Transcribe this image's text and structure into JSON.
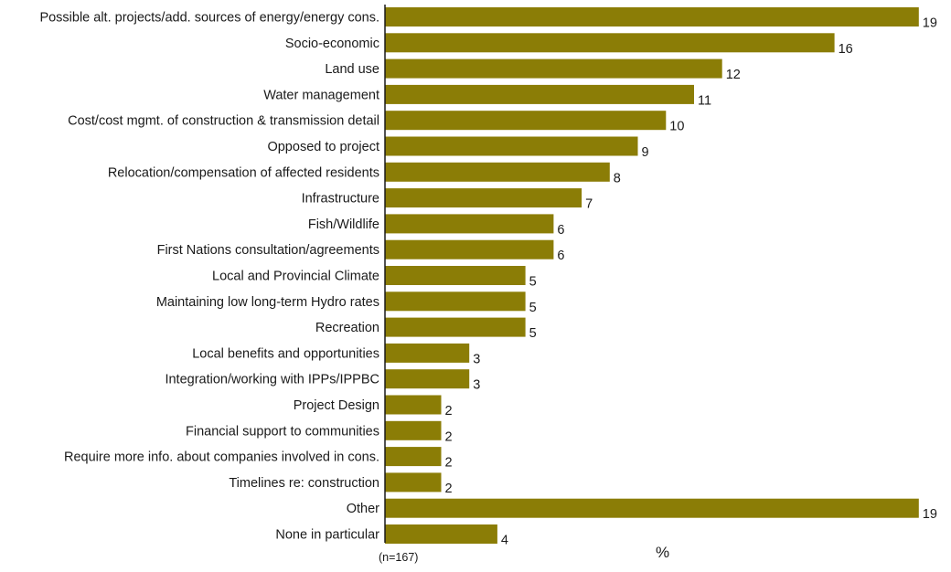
{
  "chart_data": {
    "type": "bar",
    "orientation": "horizontal",
    "categories": [
      "Possible alt. projects/add. sources of energy/energy cons.",
      "Socio-economic",
      "Land use",
      "Water management",
      "Cost/cost mgmt. of construction & transmission detail",
      "Opposed to project",
      "Relocation/compensation of affected residents",
      "Infrastructure",
      "Fish/Wildlife",
      "First Nations consultation/agreements",
      "Local and Provincial Climate",
      "Maintaining low long-term Hydro rates",
      "Recreation",
      "Local benefits and opportunities",
      "Integration/working with IPPs/IPPBC",
      "Project Design",
      "Financial support to communities",
      "Require more info. about companies involved in cons.",
      "Timelines re: construction",
      "Other",
      "None in particular"
    ],
    "values": [
      19,
      16,
      12,
      11,
      10,
      9,
      8,
      7,
      6,
      6,
      5,
      5,
      5,
      3,
      3,
      2,
      2,
      2,
      2,
      19,
      4
    ],
    "xlabel": "%",
    "ylabel": "",
    "note": "(n=167)",
    "xlim": [
      0,
      19.3
    ],
    "grid": false,
    "legend": "none",
    "bar_color": "#8b7d06"
  }
}
